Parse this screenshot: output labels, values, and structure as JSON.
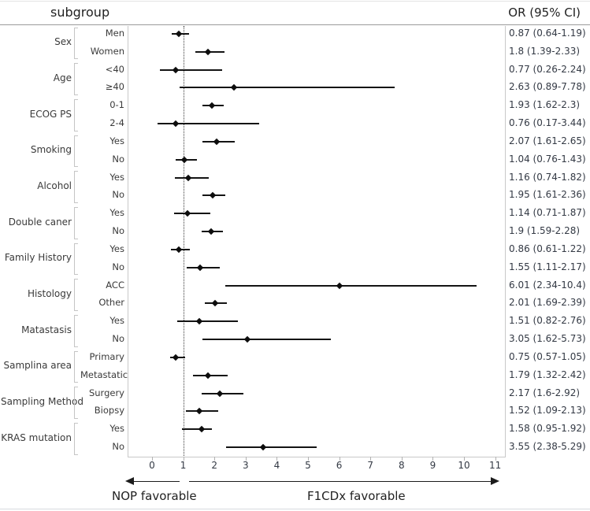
{
  "header": {
    "subgroup": "subgroup",
    "or_ci": "OR (95% CI)"
  },
  "axis": {
    "ticks": [
      0,
      1,
      2,
      3,
      4,
      5,
      6,
      7,
      8,
      9,
      10,
      11
    ],
    "ref_value": 1,
    "left_label": "NOP favorable",
    "right_label": "F1CDx favorable"
  },
  "chart_data": {
    "type": "forest",
    "xlim": [
      -0.8,
      11.6
    ],
    "ref_line": 1,
    "legend": "none",
    "grid": false,
    "value_column_header": "OR (95% CI)",
    "groups": [
      {
        "label": "Sex",
        "rows": [
          {
            "label": "Men",
            "or": 0.87,
            "ci_low": 0.64,
            "ci_high": 1.19,
            "or_text": "0.87 (0.64-1.19)"
          },
          {
            "label": "Women",
            "or": 1.8,
            "ci_low": 1.39,
            "ci_high": 2.33,
            "or_text": "1.8 (1.39-2.33)"
          }
        ]
      },
      {
        "label": "Age",
        "rows": [
          {
            "label": "<40",
            "or": 0.77,
            "ci_low": 0.26,
            "ci_high": 2.24,
            "or_text": "0.77 (0.26-2.24)"
          },
          {
            "label": "≥40",
            "or": 2.63,
            "ci_low": 0.89,
            "ci_high": 7.78,
            "or_text": "2.63 (0.89-7.78)"
          }
        ]
      },
      {
        "label": "ECOG PS",
        "rows": [
          {
            "label": "0-1",
            "or": 1.93,
            "ci_low": 1.62,
            "ci_high": 2.3,
            "or_text": "1.93 (1.62-2.3)"
          },
          {
            "label": "2-4",
            "or": 0.76,
            "ci_low": 0.17,
            "ci_high": 3.44,
            "or_text": "0.76 (0.17-3.44)"
          }
        ]
      },
      {
        "label": "Smoking",
        "rows": [
          {
            "label": "Yes",
            "or": 2.07,
            "ci_low": 1.61,
            "ci_high": 2.65,
            "or_text": "2.07 (1.61-2.65)"
          },
          {
            "label": "No",
            "or": 1.04,
            "ci_low": 0.76,
            "ci_high": 1.43,
            "or_text": "1.04 (0.76-1.43)"
          }
        ]
      },
      {
        "label": "Alcohol",
        "rows": [
          {
            "label": "Yes",
            "or": 1.16,
            "ci_low": 0.74,
            "ci_high": 1.82,
            "or_text": "1.16 (0.74-1.82)"
          },
          {
            "label": "No",
            "or": 1.95,
            "ci_low": 1.61,
            "ci_high": 2.36,
            "or_text": "1.95 (1.61-2.36)"
          }
        ]
      },
      {
        "label": "Double caner",
        "rows": [
          {
            "label": "Yes",
            "or": 1.14,
            "ci_low": 0.71,
            "ci_high": 1.87,
            "or_text": "1.14 (0.71-1.87)"
          },
          {
            "label": "No",
            "or": 1.9,
            "ci_low": 1.59,
            "ci_high": 2.28,
            "or_text": "1.9 (1.59-2.28)"
          }
        ]
      },
      {
        "label": "Family History",
        "rows": [
          {
            "label": "Yes",
            "or": 0.86,
            "ci_low": 0.61,
            "ci_high": 1.22,
            "or_text": "0.86 (0.61-1.22)"
          },
          {
            "label": "No",
            "or": 1.55,
            "ci_low": 1.11,
            "ci_high": 2.17,
            "or_text": "1.55 (1.11-2.17)"
          }
        ]
      },
      {
        "label": "Histology",
        "rows": [
          {
            "label": "ACC",
            "or": 6.01,
            "ci_low": 2.34,
            "ci_high": 10.4,
            "or_text": "6.01 (2.34-10.4)"
          },
          {
            "label": "Other",
            "or": 2.01,
            "ci_low": 1.69,
            "ci_high": 2.39,
            "or_text": "2.01 (1.69-2.39)"
          }
        ]
      },
      {
        "label": "Matastasis",
        "rows": [
          {
            "label": "Yes",
            "or": 1.51,
            "ci_low": 0.82,
            "ci_high": 2.76,
            "or_text": "1.51 (0.82-2.76)"
          },
          {
            "label": "No",
            "or": 3.05,
            "ci_low": 1.62,
            "ci_high": 5.73,
            "or_text": "3.05 (1.62-5.73)"
          }
        ]
      },
      {
        "label": "Samplina area",
        "rows": [
          {
            "label": "Primary",
            "or": 0.75,
            "ci_low": 0.57,
            "ci_high": 1.05,
            "or_text": "0.75 (0.57-1.05)"
          },
          {
            "label": "Metastatic",
            "or": 1.79,
            "ci_low": 1.32,
            "ci_high": 2.42,
            "or_text": "1.79 (1.32-2.42)"
          }
        ]
      },
      {
        "label": "Sampling Method",
        "rows": [
          {
            "label": "Surgery",
            "or": 2.17,
            "ci_low": 1.6,
            "ci_high": 2.92,
            "or_text": "2.17 (1.6-2.92)"
          },
          {
            "label": "Biopsy",
            "or": 1.52,
            "ci_low": 1.09,
            "ci_high": 2.13,
            "or_text": "1.52 (1.09-2.13)"
          }
        ]
      },
      {
        "label": "KRAS mutation",
        "rows": [
          {
            "label": "Yes",
            "or": 1.58,
            "ci_low": 0.95,
            "ci_high": 1.92,
            "or_text": "1.58 (0.95-1.92)"
          },
          {
            "label": "No",
            "or": 3.55,
            "ci_low": 2.38,
            "ci_high": 5.29,
            "or_text": "3.55 (2.38-5.29)"
          }
        ]
      }
    ]
  },
  "colors": {
    "text": "#3a3a3a",
    "value_text": "#333944",
    "line_black": "#141414",
    "border_gray": "#c8c8c8",
    "header_rule": "#9a9a9a",
    "page_rule": "#dadee3"
  }
}
